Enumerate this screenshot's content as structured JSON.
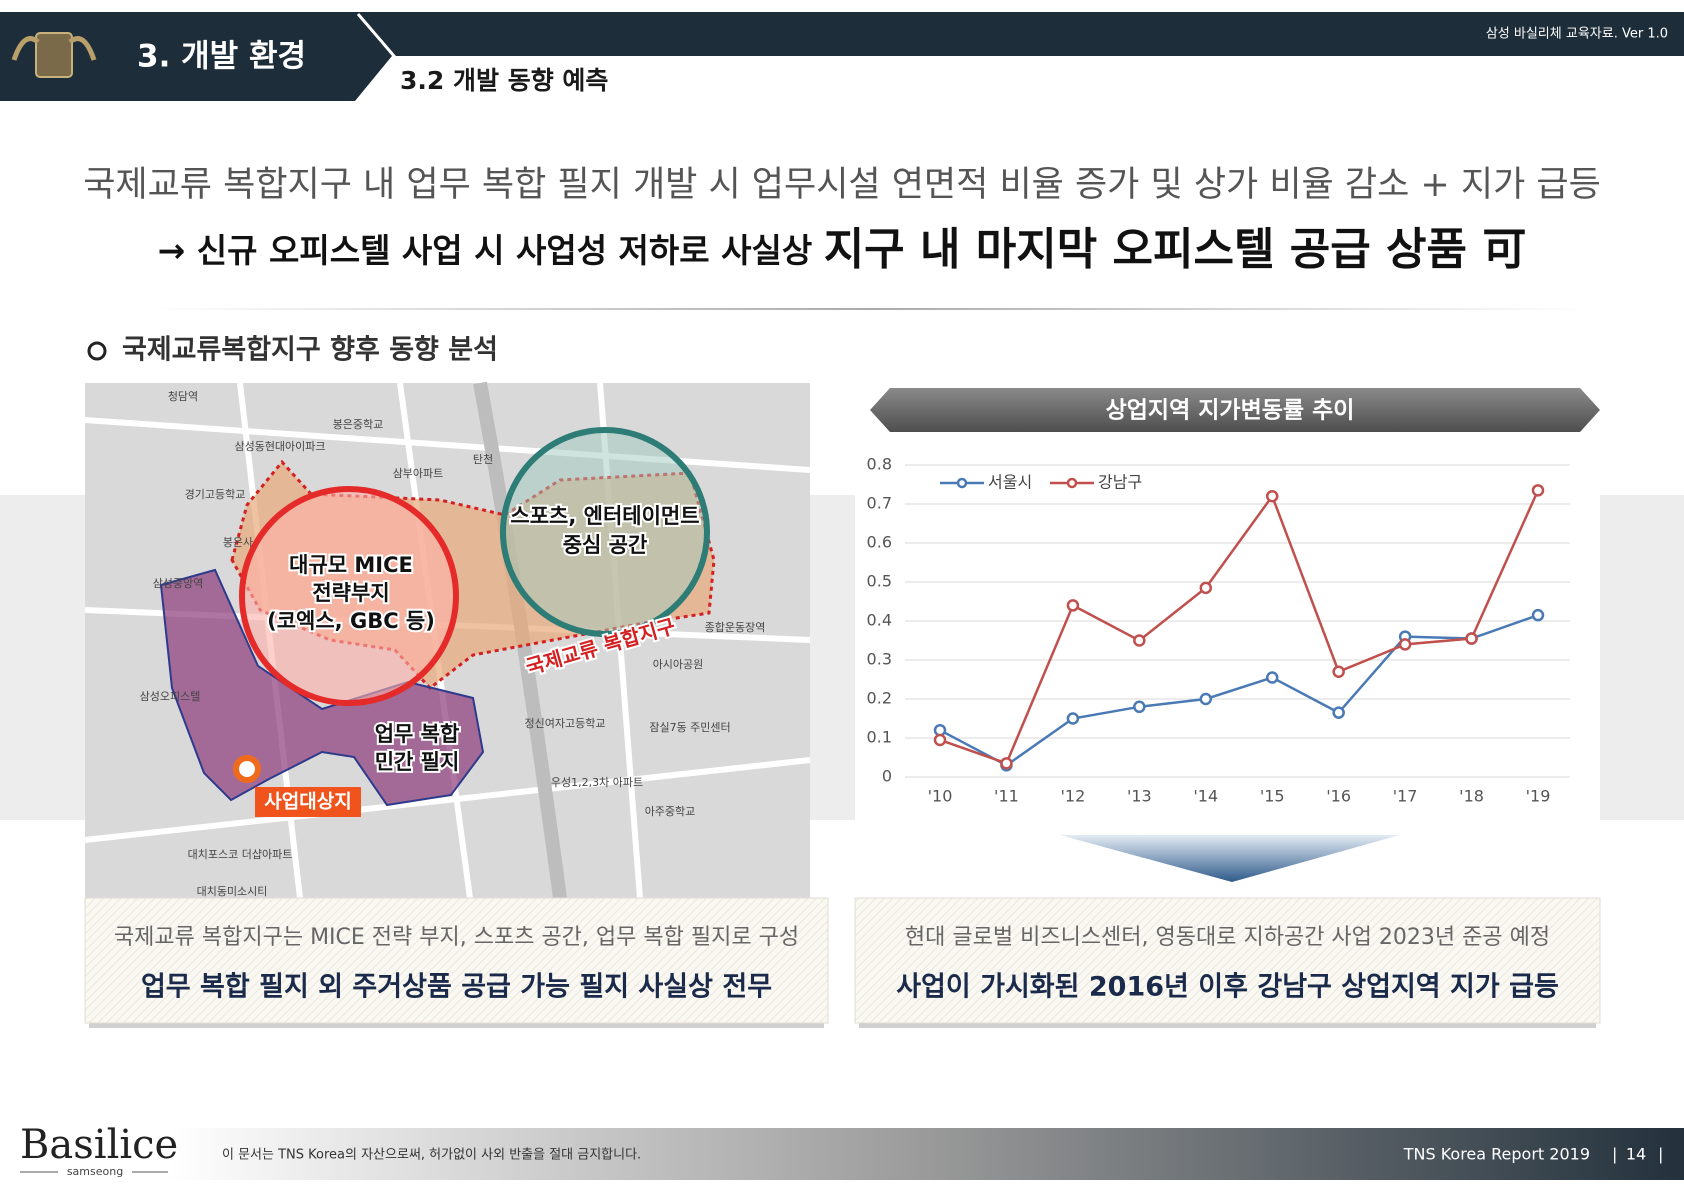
{
  "header": {
    "section": "3. 개발 환경",
    "subsection": "3.2 개발 동향 예측",
    "version": "삼성 바실리체 교육자료. Ver  1.0"
  },
  "headline": {
    "line1": "국제교류 복합지구 내 업무 복합 필지 개발 시 업무시설 연면적 비율 증가 및 상가 비율 감소 + 지가 급등",
    "line2_a": "→ 신규 오피스텔 사업 시 사업성 저하로 사실상 ",
    "line2_b": "지구 내 마지막 오피스텔 공급 상품 可"
  },
  "section_heading": "국제교류복합지구 향후 동향 분석",
  "map": {
    "mice_label": [
      "대규모 MICE",
      "전략부지",
      "(코엑스, GBC 등)"
    ],
    "sports_label": [
      "스포츠, 엔터테이먼트",
      "중심 공간"
    ],
    "district_label": "국제교류 복합지구",
    "business_label": [
      "업무 복합",
      "민간 필지"
    ],
    "site_label": "사업대상지",
    "place_labels": [
      "청담역",
      "봉은중학교",
      "삼성동현대아이파크",
      "경기고등학교",
      "봉은사",
      "삼부아파트",
      "삼성중앙역",
      "종합운동장역",
      "아시아공원",
      "정신여자고등학교",
      "잠실7동 주민센터",
      "우성1,2,3차 아파트",
      "아주중학교",
      "대치포스코 더샵아파트",
      "대치동미소시티",
      "탄천",
      "삼성오피스텔"
    ]
  },
  "chart_data": {
    "type": "line",
    "title": "상업지역 지가변동률 추이",
    "categories": [
      "'10",
      "'11",
      "'12",
      "'13",
      "'14",
      "'15",
      "'16",
      "'17",
      "'18",
      "'19"
    ],
    "series": [
      {
        "name": "서울시",
        "color": "#4a7ab5",
        "values": [
          0.12,
          0.03,
          0.15,
          0.18,
          0.2,
          0.255,
          0.165,
          0.36,
          0.355,
          0.415
        ]
      },
      {
        "name": "강남구",
        "color": "#c0504d",
        "values": [
          0.095,
          0.035,
          0.44,
          0.35,
          0.485,
          0.72,
          0.27,
          0.34,
          0.355,
          0.735
        ]
      }
    ],
    "ylim": [
      0,
      0.8
    ],
    "yticks": [
      0,
      0.1,
      0.2,
      0.3,
      0.4,
      0.5,
      0.6,
      0.7,
      0.8
    ],
    "grid": true,
    "legend": "top-left"
  },
  "captions": [
    {
      "line1": "국제교류 복합지구는 MICE 전략 부지, 스포츠 공간, 업무 복합 필지로 구성",
      "line2": "업무 복합 필지 외 주거상품 공급 가능 필지 사실상 전무"
    },
    {
      "line1": "현대 글로벌 비즈니스센터, 영동대로 지하공간 사업 2023년 준공 예정",
      "line2": "사업이 가시화된 2016년 이후 강남구 상업지역 지가 급등"
    }
  ],
  "footer": {
    "brand": "Basilice",
    "brand_sub": "samseong",
    "disclaimer": "이 문서는 TNS Korea의 자산으로써, 허가없이 사외 반출을 절대 금지합니다.",
    "report": "TNS Korea Report 2019",
    "page": "14"
  }
}
